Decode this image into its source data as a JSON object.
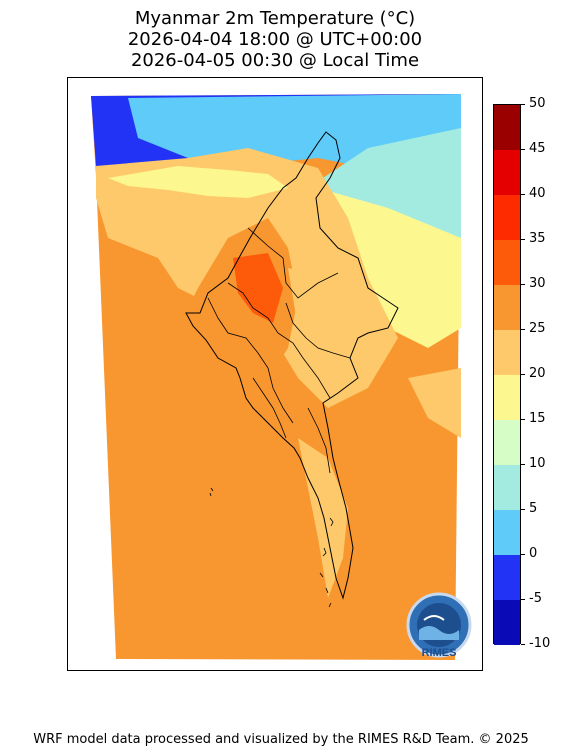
{
  "title": {
    "line1": "Myanmar 2m Temperature (°C)",
    "line2": "2026-04-04 18:00 @ UTC+00:00",
    "line3": "2026-04-05 00:30 @ Local Time"
  },
  "map": {
    "field": "2m temperature",
    "region": "Myanmar",
    "dominant_range": "25-30",
    "colors": {
      "ocean_lowland": "#f8962f",
      "hot_core": "#fd5a0a",
      "warm": "#fdc96a",
      "mild": "#fdf78f",
      "cool": "#d7fdc6",
      "cold": "#9fe8e0",
      "very_cold": "#5ecbf8",
      "freezing": "#2233f5"
    }
  },
  "colorbar": {
    "ticks": [
      "50",
      "45",
      "40",
      "35",
      "30",
      "25",
      "20",
      "15",
      "10",
      "5",
      "0",
      "-5",
      "-10"
    ],
    "bands": [
      {
        "range": "45-50",
        "color": "#9a0000"
      },
      {
        "range": "40-45",
        "color": "#e40000"
      },
      {
        "range": "35-40",
        "color": "#ff2b00"
      },
      {
        "range": "30-35",
        "color": "#fd5a0a"
      },
      {
        "range": "25-30",
        "color": "#f8962f"
      },
      {
        "range": "20-25",
        "color": "#fdc96a"
      },
      {
        "range": "15-20",
        "color": "#fdf78f"
      },
      {
        "range": "10-15",
        "color": "#d7fdc6"
      },
      {
        "range": "5-10",
        "color": "#a3ebe0"
      },
      {
        "range": "0-5",
        "color": "#5ecbf8"
      },
      {
        "range": "-5-0",
        "color": "#2233f5"
      },
      {
        "range": "-10--5",
        "color": "#0a0ab6"
      }
    ]
  },
  "logo": {
    "text": "RIMES"
  },
  "footer": {
    "credit": "WRF model data processed and visualized by the RIMES R&D Team. © 2025"
  }
}
